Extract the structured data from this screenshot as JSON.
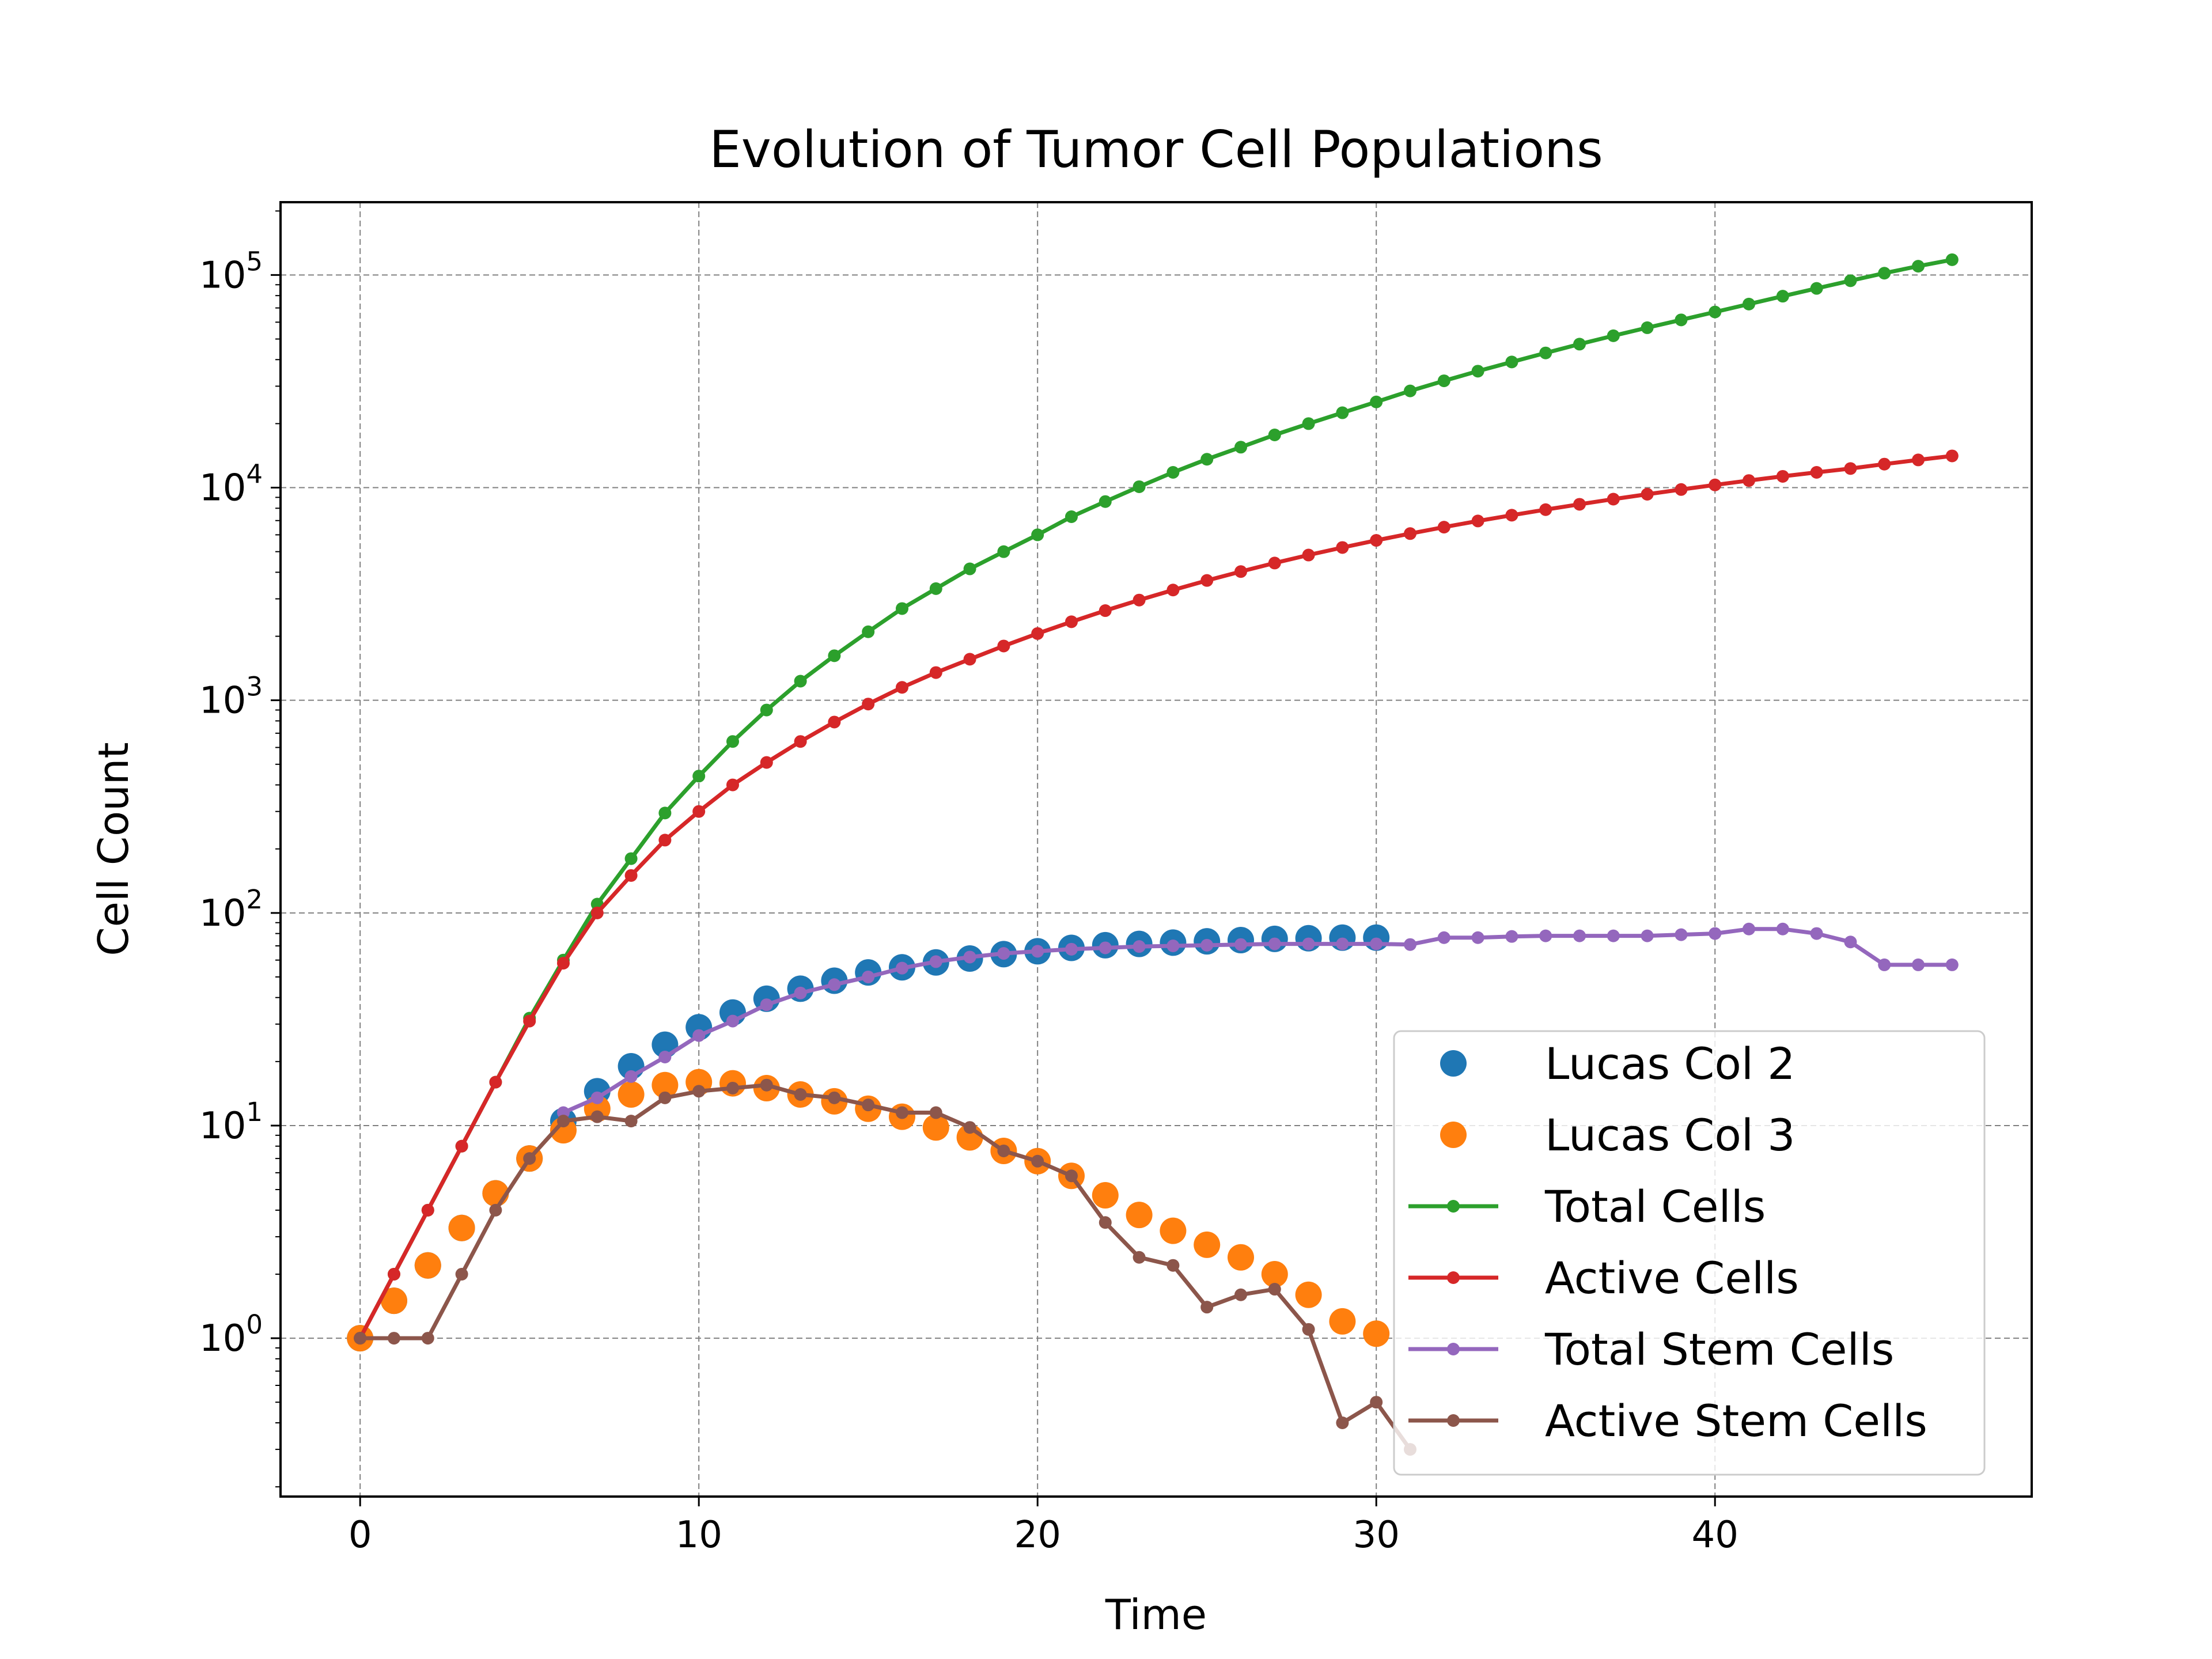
{
  "chart_data": {
    "type": "line",
    "title": "Evolution of Tumor Cell Populations",
    "xlabel": "Time",
    "ylabel": "Cell Count",
    "yscale": "log",
    "xlim": [
      -2.35,
      49.35
    ],
    "ylim": [
      0.18,
      220000
    ],
    "xticks": [
      0,
      10,
      20,
      30,
      40
    ],
    "yticks": [
      {
        "value": 1,
        "base": "10",
        "exp": "0"
      },
      {
        "value": 10,
        "base": "10",
        "exp": "1"
      },
      {
        "value": 100,
        "base": "10",
        "exp": "2"
      },
      {
        "value": 1000,
        "base": "10",
        "exp": "3"
      },
      {
        "value": 10000,
        "base": "10",
        "exp": "4"
      },
      {
        "value": 100000,
        "base": "10",
        "exp": "5"
      }
    ],
    "grid": true,
    "legend_position": "lower right",
    "series": [
      {
        "name": "Lucas Col 2",
        "style": "markers",
        "color": "#1f77b4",
        "x": [
          0,
          1,
          2,
          3,
          4,
          5,
          6,
          7,
          8,
          9,
          10,
          11,
          12,
          13,
          14,
          15,
          16,
          17,
          18,
          19,
          20,
          21,
          22,
          23,
          24,
          25,
          26,
          27,
          28,
          29,
          30
        ],
        "y": [
          1,
          1.5,
          2.2,
          3.3,
          4.8,
          7,
          10.5,
          14.5,
          19,
          24,
          29,
          34,
          39.5,
          44,
          48,
          52.5,
          55.5,
          58.5,
          61,
          64,
          66,
          68.5,
          70.5,
          71.5,
          72.5,
          73.5,
          74.5,
          75.5,
          76,
          76.5,
          76.5
        ]
      },
      {
        "name": "Lucas Col 3",
        "style": "markers",
        "color": "#ff7f0e",
        "x": [
          0,
          1,
          2,
          3,
          4,
          5,
          6,
          7,
          8,
          9,
          10,
          11,
          12,
          13,
          14,
          15,
          16,
          17,
          18,
          19,
          20,
          21,
          22,
          23,
          24,
          25,
          26,
          27,
          28,
          29,
          30
        ],
        "y": [
          1,
          1.5,
          2.2,
          3.3,
          4.8,
          7,
          9.5,
          12,
          14,
          15.5,
          16,
          15.8,
          15,
          14,
          13,
          12,
          11,
          9.8,
          8.8,
          7.6,
          6.8,
          5.8,
          4.7,
          3.8,
          3.2,
          2.75,
          2.4,
          2.0,
          1.6,
          1.2,
          1.05
        ]
      },
      {
        "name": "Total Cells",
        "style": "line-markers",
        "color": "#2ca02c",
        "x": [
          0,
          1,
          2,
          3,
          4,
          5,
          6,
          7,
          8,
          9,
          10,
          11,
          12,
          13,
          14,
          15,
          16,
          17,
          18,
          19,
          20,
          21,
          22,
          23,
          24,
          25,
          26,
          27,
          28,
          29,
          30,
          31,
          32,
          33,
          34,
          35,
          36,
          37,
          38,
          39,
          40,
          41,
          42,
          43,
          44,
          45,
          46,
          47
        ],
        "y": [
          1,
          2,
          4,
          8,
          16,
          32,
          60,
          110,
          180,
          295,
          440,
          640,
          900,
          1230,
          1620,
          2100,
          2700,
          3350,
          4150,
          5000,
          6000,
          7300,
          8600,
          10100,
          11800,
          13600,
          15500,
          17700,
          20000,
          22500,
          25300,
          28500,
          31800,
          35300,
          39000,
          43000,
          47300,
          51800,
          56500,
          61500,
          67000,
          73000,
          79500,
          86500,
          94000,
          102000,
          110000,
          118000
        ]
      },
      {
        "name": "Active Cells",
        "style": "line-markers",
        "color": "#d62728",
        "x": [
          0,
          1,
          2,
          3,
          4,
          5,
          6,
          7,
          8,
          9,
          10,
          11,
          12,
          13,
          14,
          15,
          16,
          17,
          18,
          19,
          20,
          21,
          22,
          23,
          24,
          25,
          26,
          27,
          28,
          29,
          30,
          31,
          32,
          33,
          34,
          35,
          36,
          37,
          38,
          39,
          40,
          41,
          42,
          43,
          44,
          45,
          46,
          47
        ],
        "y": [
          1,
          2,
          4,
          8,
          16,
          31,
          58,
          100,
          150,
          220,
          300,
          400,
          510,
          640,
          790,
          960,
          1150,
          1350,
          1560,
          1800,
          2060,
          2340,
          2640,
          2960,
          3300,
          3660,
          4030,
          4420,
          4820,
          5230,
          5650,
          6080,
          6520,
          6970,
          7420,
          7880,
          8350,
          8830,
          9310,
          9800,
          10300,
          10800,
          11300,
          11800,
          12300,
          12900,
          13500,
          14100
        ]
      },
      {
        "name": "Total Stem Cells",
        "style": "line-markers",
        "color": "#9467bd",
        "x": [
          6,
          7,
          8,
          9,
          10,
          11,
          12,
          13,
          14,
          15,
          16,
          17,
          18,
          19,
          20,
          21,
          22,
          23,
          24,
          25,
          26,
          27,
          28,
          29,
          30,
          31,
          32,
          33,
          34,
          35,
          36,
          37,
          38,
          39,
          40,
          41,
          42,
          43,
          44,
          45,
          46,
          47
        ],
        "y": [
          11.5,
          13.5,
          17,
          21,
          26.5,
          31,
          37,
          42,
          46,
          50,
          55,
          59,
          62,
          64.5,
          66,
          67.5,
          68.5,
          69.5,
          70,
          70.5,
          71,
          71.5,
          71.5,
          71.5,
          71.5,
          71,
          76.5,
          76.5,
          77.5,
          78,
          78,
          78,
          78,
          79,
          80,
          84,
          84,
          80,
          73,
          57,
          57,
          57
        ]
      },
      {
        "name": "Active Stem Cells",
        "style": "line-markers",
        "color": "#8c564b",
        "x": [
          0,
          1,
          2,
          3,
          4,
          5,
          6,
          7,
          8,
          9,
          10,
          11,
          12,
          13,
          14,
          15,
          16,
          17,
          18,
          19,
          20,
          21,
          22,
          23,
          24,
          25,
          26,
          27,
          28,
          29,
          30,
          31
        ],
        "y": [
          1,
          1,
          1,
          2,
          4,
          7,
          10.5,
          11,
          10.5,
          13.5,
          14.5,
          15,
          15.5,
          14,
          13.5,
          12.5,
          11.5,
          11.5,
          9.8,
          7.6,
          6.8,
          5.8,
          3.5,
          2.4,
          2.2,
          1.4,
          1.6,
          1.7,
          1.1,
          0.4,
          0.5,
          0.3
        ]
      }
    ]
  }
}
